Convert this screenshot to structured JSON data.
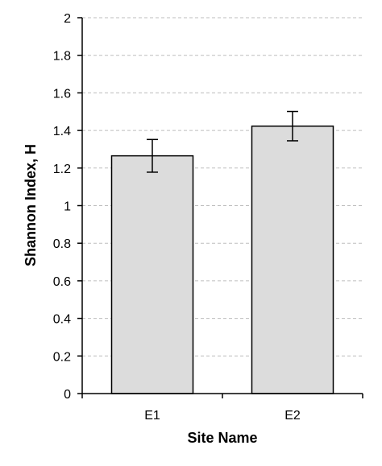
{
  "chart_data": {
    "type": "bar",
    "title": "",
    "xlabel": "Site Name",
    "ylabel": "Shannon Index, H",
    "categories": [
      "E1",
      "E2"
    ],
    "values": [
      1.265,
      1.423
    ],
    "error": [
      0.087,
      0.078
    ],
    "ylim": [
      0,
      2
    ],
    "yticks": [
      0,
      0.2,
      0.4,
      0.6,
      0.8,
      1,
      1.2,
      1.4,
      1.6,
      1.8,
      2
    ],
    "ytick_labels": [
      "0",
      "0.2",
      "0.4",
      "0.6",
      "0.8",
      "1",
      "1.2",
      "1.4",
      "1.6",
      "1.8",
      "2"
    ],
    "grid": true,
    "legend": "none",
    "colors": {
      "bar_fill": "#dcdcdc",
      "bar_stroke": "#000000",
      "grid": "#bdbdbd",
      "axis": "#000000"
    }
  }
}
